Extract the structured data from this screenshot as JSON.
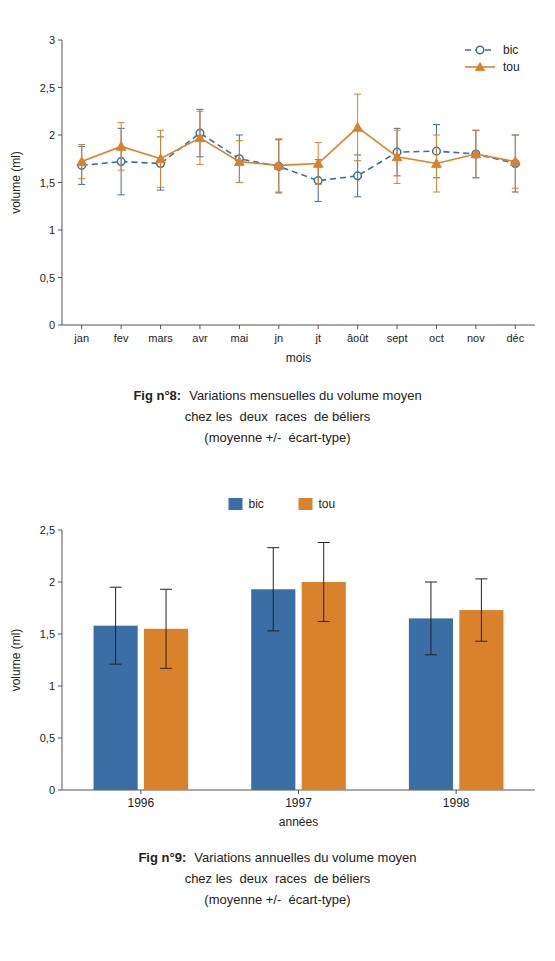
{
  "chart_data": [
    {
      "type": "line",
      "title": "Fig n°8:",
      "subtitle": [
        "Variations mensuelles du volume moyen",
        "chez les  deux  races  de béliers",
        "(moyenne +/-  écart-type)"
      ],
      "x_label": "mois",
      "y_label": "volume (ml)",
      "categories": [
        "jan",
        "fev",
        "mars",
        "avr",
        "mai",
        "jn",
        "jt",
        "âoût",
        "sept",
        "oct",
        "nov",
        "déc"
      ],
      "series": [
        {
          "name": "bic",
          "color": "#3b6ea5",
          "marker": "circle",
          "line_style": "dashed",
          "values": [
            1.68,
            1.72,
            1.7,
            2.02,
            1.75,
            1.67,
            1.52,
            1.57,
            1.82,
            1.83,
            1.8,
            1.7
          ],
          "errors": [
            0.2,
            0.35,
            0.28,
            0.25,
            0.25,
            0.28,
            0.22,
            0.22,
            0.25,
            0.28,
            0.25,
            0.3
          ]
        },
        {
          "name": "tou",
          "color": "#d9822b",
          "marker": "triangle",
          "line_style": "solid",
          "values": [
            1.72,
            1.88,
            1.75,
            1.97,
            1.72,
            1.68,
            1.7,
            2.08,
            1.77,
            1.7,
            1.8,
            1.72
          ],
          "errors": [
            0.18,
            0.25,
            0.3,
            0.28,
            0.22,
            0.28,
            0.22,
            0.35,
            0.28,
            0.3,
            0.25,
            0.28
          ]
        }
      ],
      "ylim": [
        0,
        3
      ],
      "yticks": [
        0,
        {
          "value": 0.5,
          "label": "0,5"
        },
        1,
        {
          "value": 1.5,
          "label": "1,5"
        },
        2,
        {
          "value": 2.5,
          "label": "2,5"
        },
        3
      ],
      "grid": false,
      "legend": "upper right"
    },
    {
      "type": "bar",
      "title": "Fig n°9:",
      "subtitle": [
        "Variations annuelles du volume moyen",
        "chez les  deux  races  de béliers",
        "(moyenne +/-  écart-type)"
      ],
      "x_label": "années",
      "y_label": "volume (ml)",
      "categories": [
        "1996",
        "1997",
        "1998"
      ],
      "series": [
        {
          "name": "bic",
          "color": "#3b6ea5",
          "values": [
            1.58,
            1.93,
            1.65
          ],
          "errors": [
            0.37,
            0.4,
            0.35
          ]
        },
        {
          "name": "tou",
          "color": "#d9822b",
          "values": [
            1.55,
            2.0,
            1.73
          ],
          "errors": [
            0.38,
            0.38,
            0.3
          ]
        }
      ],
      "ylim": [
        0,
        2.5
      ],
      "yticks": [
        0,
        {
          "value": 0.5,
          "label": "0,5"
        },
        1,
        {
          "value": 1.5,
          "label": "1,5"
        },
        2,
        {
          "value": 2.5,
          "label": "2,5"
        }
      ],
      "grid": false,
      "legend": "top"
    }
  ]
}
